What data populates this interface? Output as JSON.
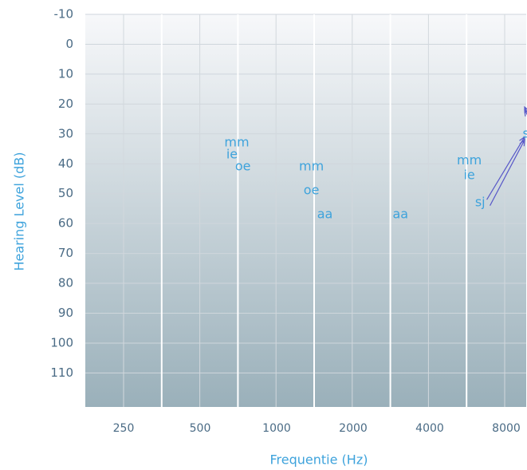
{
  "chart_data": {
    "type": "scatter",
    "xlabel": "Frequentie (Hz)",
    "ylabel": "Hearing Level (dB)",
    "x_ticks": [
      "250",
      "500",
      "1000",
      "2000",
      "4000",
      "8000"
    ],
    "y_ticks": [
      "-10",
      "0",
      "10",
      "20",
      "30",
      "40",
      "50",
      "60",
      "70",
      "80",
      "90",
      "100",
      "110"
    ],
    "ylim": [
      -10,
      120
    ],
    "y_inverted": true,
    "x_scale": "log",
    "grid": true,
    "phonemes": [
      {
        "text": "mm",
        "x": 350,
        "y": 33
      },
      {
        "text": "ie",
        "x": 335,
        "y": 37
      },
      {
        "text": "oe",
        "x": 370,
        "y": 41
      },
      {
        "text": "mm",
        "x": 690,
        "y": 41
      },
      {
        "text": "oe",
        "x": 690,
        "y": 49
      },
      {
        "text": "aa",
        "x": 780,
        "y": 57
      },
      {
        "text": "aa",
        "x": 1550,
        "y": 57
      },
      {
        "text": "mm",
        "x": 2900,
        "y": 39
      },
      {
        "text": "ie",
        "x": 2900,
        "y": 44
      },
      {
        "text": "sj",
        "x": 3200,
        "y": 53
      },
      {
        "text": "ss",
        "x": 5000,
        "y": 30
      }
    ],
    "arrows": [
      {
        "from": [
          3400,
          52
        ],
        "to": [
          9000,
          31
        ]
      },
      {
        "from": [
          3500,
          54
        ],
        "to": [
          9000,
          32
        ]
      },
      {
        "from": [
          5400,
          30
        ],
        "to": [
          9000,
          21
        ]
      },
      {
        "from": [
          5500,
          31
        ],
        "to": [
          9000,
          22
        ]
      }
    ],
    "colors": {
      "text_accent": "#3ea3dc",
      "tick_text": "#4a6b85",
      "grid_line": "#ffffff",
      "arrow": "#5858c8",
      "bg_top": "#f7f8fa",
      "bg_bottom": "#9ab0ba"
    }
  }
}
